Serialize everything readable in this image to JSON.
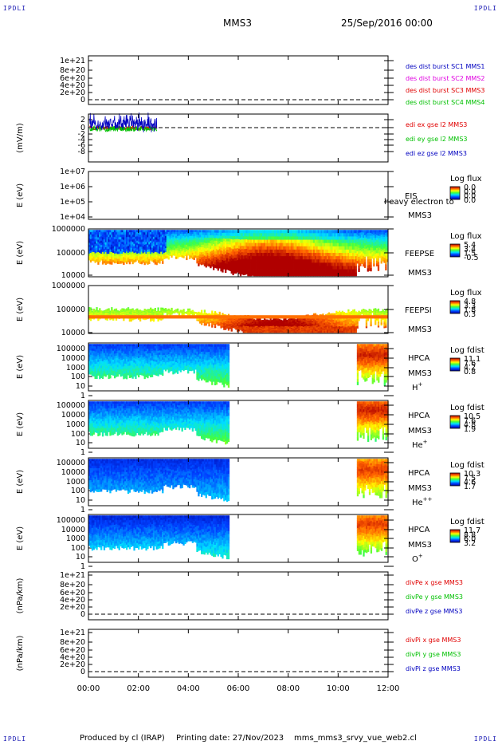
{
  "corners": {
    "top_left": "IPDLI",
    "top_right": "IPDLI",
    "bottom_left": "IPDLI",
    "bottom_right": "IPDLI"
  },
  "header": {
    "spacecraft": "MMS3",
    "date": "25/Sep/2016 00:00"
  },
  "footer": {
    "produced_by": "Produced by cl (IRAP)",
    "printing_date": "Printing date: 27/Nov/2023",
    "file": "mms_mms3_srvy_vue_web2.cl"
  },
  "x_axis": {
    "ticks": [
      "00:00",
      "02:00",
      "04:00",
      "06:00",
      "08:00",
      "10:00",
      "12:00"
    ],
    "range_hours": [
      0,
      12
    ]
  },
  "colors": {
    "red": "#e00000",
    "green": "#00c000",
    "blue": "#0000c0",
    "magenta": "#e000e0"
  },
  "chart_data": [
    {
      "type": "line",
      "id": "p1",
      "yticks": [
        "1e+21",
        "8e+20",
        "6e+20",
        "4e+20",
        "2e+20",
        "0"
      ],
      "ylim": [
        0,
        1.1e+21
      ],
      "reference_line": 0,
      "series": [
        {
          "name": "des dist burst SC1 MMS1",
          "color": "#0000c0",
          "values": []
        },
        {
          "name": "des dist burst SC2 MMS2",
          "color": "#e000e0",
          "values": []
        },
        {
          "name": "des dist burst SC3 MMS3",
          "color": "#e00000",
          "values": []
        },
        {
          "name": "des dist burst SC4 MMS4",
          "color": "#00c000",
          "values": []
        }
      ]
    },
    {
      "type": "line",
      "id": "p2",
      "ylabel": "(mV/m)",
      "yticks": [
        "2",
        "0",
        "-2",
        "-4",
        "-6",
        "-8"
      ],
      "ylim": [
        -8.5,
        3
      ],
      "reference_line": 0,
      "data_range_hours": [
        0.05,
        2.75
      ],
      "series": [
        {
          "name": "edi ex gse l2 MMS3",
          "color": "#e00000"
        },
        {
          "name": "edi ey gse l2 MMS3",
          "color": "#00c000"
        },
        {
          "name": "edi ez gse l2 MMS3",
          "color": "#0000c0"
        }
      ]
    },
    {
      "type": "heatmap",
      "id": "p3",
      "ylabel": "E (eV)",
      "yticks": [
        "1e+07",
        "1e+06",
        "1e+05",
        "1e+04"
      ],
      "scale": "log",
      "instrument": "EIS",
      "extra_label": "heavy electron to",
      "spacecraft": "MMS3",
      "colorbar": {
        "title": "Log flux",
        "ticks": [
          "0.0",
          "0.0",
          "0.0",
          "0.0"
        ]
      },
      "data_intervals_hours": []
    },
    {
      "type": "heatmap",
      "id": "p4",
      "ylabel": "E (eV)",
      "yticks": [
        "1000000",
        "100000",
        "10000"
      ],
      "scale": "log",
      "instrument": "FEEPSE",
      "spacecraft": "MMS3",
      "colorbar": {
        "title": "Log flux",
        "ticks": [
          "5.4",
          "3.4",
          "1.5",
          "-0.5"
        ]
      },
      "data_intervals_hours": [
        [
          0,
          12
        ]
      ]
    },
    {
      "type": "heatmap",
      "id": "p5",
      "ylabel": "E (eV)",
      "yticks": [
        "1000000",
        "100000",
        "10000"
      ],
      "scale": "log",
      "instrument": "FEEPSI",
      "spacecraft": "MMS3",
      "colorbar": {
        "title": "Log flux",
        "ticks": [
          "4.8",
          "3.3",
          "1.8",
          "0.3"
        ]
      },
      "data_intervals_hours": [
        [
          0,
          12
        ]
      ]
    },
    {
      "type": "heatmap",
      "id": "p6",
      "ylabel": "E (eV)",
      "yticks": [
        "100000",
        "10000",
        "1000",
        "100",
        "10",
        "1"
      ],
      "scale": "log",
      "instrument": "HPCA",
      "spacecraft": "MMS3",
      "species": "H",
      "species_charge": "+",
      "colorbar": {
        "title": "Log fdist",
        "ticks": [
          "11.1",
          "7.6",
          "4.2",
          "0.8"
        ]
      },
      "data_intervals_hours": [
        [
          0,
          5.6
        ],
        [
          10.75,
          12
        ]
      ]
    },
    {
      "type": "heatmap",
      "id": "p7",
      "ylabel": "E (eV)",
      "yticks": [
        "100000",
        "10000",
        "1000",
        "100",
        "10",
        "1"
      ],
      "scale": "log",
      "instrument": "HPCA",
      "spacecraft": "MMS3",
      "species": "He",
      "species_charge": "+",
      "colorbar": {
        "title": "Log fdist",
        "ticks": [
          "10.5",
          "7.6",
          "4.8",
          "1.9"
        ]
      },
      "data_intervals_hours": [
        [
          0,
          5.6
        ],
        [
          10.75,
          12
        ]
      ]
    },
    {
      "type": "heatmap",
      "id": "p8",
      "ylabel": "E (eV)",
      "yticks": [
        "100000",
        "10000",
        "1000",
        "100",
        "10",
        "1"
      ],
      "scale": "log",
      "instrument": "HPCA",
      "spacecraft": "MMS3",
      "species": "He",
      "species_charge": "++",
      "colorbar": {
        "title": "Log fdist",
        "ticks": [
          "10.3",
          "7.5",
          "4.6",
          "1.7"
        ]
      },
      "data_intervals_hours": [
        [
          0,
          5.6
        ],
        [
          10.75,
          12
        ]
      ]
    },
    {
      "type": "heatmap",
      "id": "p9",
      "ylabel": "E (eV)",
      "yticks": [
        "100000",
        "10000",
        "1000",
        "100",
        "10",
        "1"
      ],
      "scale": "log",
      "instrument": "HPCA",
      "spacecraft": "MMS3",
      "species": "O",
      "species_charge": "+",
      "colorbar": {
        "title": "Log fdist",
        "ticks": [
          "11.7",
          "8.8",
          "6.0",
          "3.2"
        ]
      },
      "data_intervals_hours": [
        [
          0,
          5.6
        ],
        [
          10.75,
          12
        ]
      ]
    },
    {
      "type": "line",
      "id": "p10",
      "ylabel": "(nPa/km)",
      "yticks": [
        "1e+21",
        "8e+20",
        "6e+20",
        "4e+20",
        "2e+20",
        "0"
      ],
      "ylim": [
        0,
        1.1e+21
      ],
      "reference_line": 0,
      "series": [
        {
          "name": "divPe x gse MMS3",
          "color": "#e00000",
          "values": []
        },
        {
          "name": "divPe y gse MMS3",
          "color": "#00c000",
          "values": []
        },
        {
          "name": "divPe z gse MMS3",
          "color": "#0000c0",
          "values": []
        }
      ]
    },
    {
      "type": "line",
      "id": "p11",
      "ylabel": "(nPa/km)",
      "yticks": [
        "1e+21",
        "8e+20",
        "6e+20",
        "4e+20",
        "2e+20",
        "0"
      ],
      "ylim": [
        0,
        1.1e+21
      ],
      "reference_line": 0,
      "series": [
        {
          "name": "divPi x gse MMS3",
          "color": "#e00000",
          "values": []
        },
        {
          "name": "divPi y gse MMS3",
          "color": "#00c000",
          "values": []
        },
        {
          "name": "divPi z gse MMS3",
          "color": "#0000c0",
          "values": []
        }
      ]
    }
  ]
}
